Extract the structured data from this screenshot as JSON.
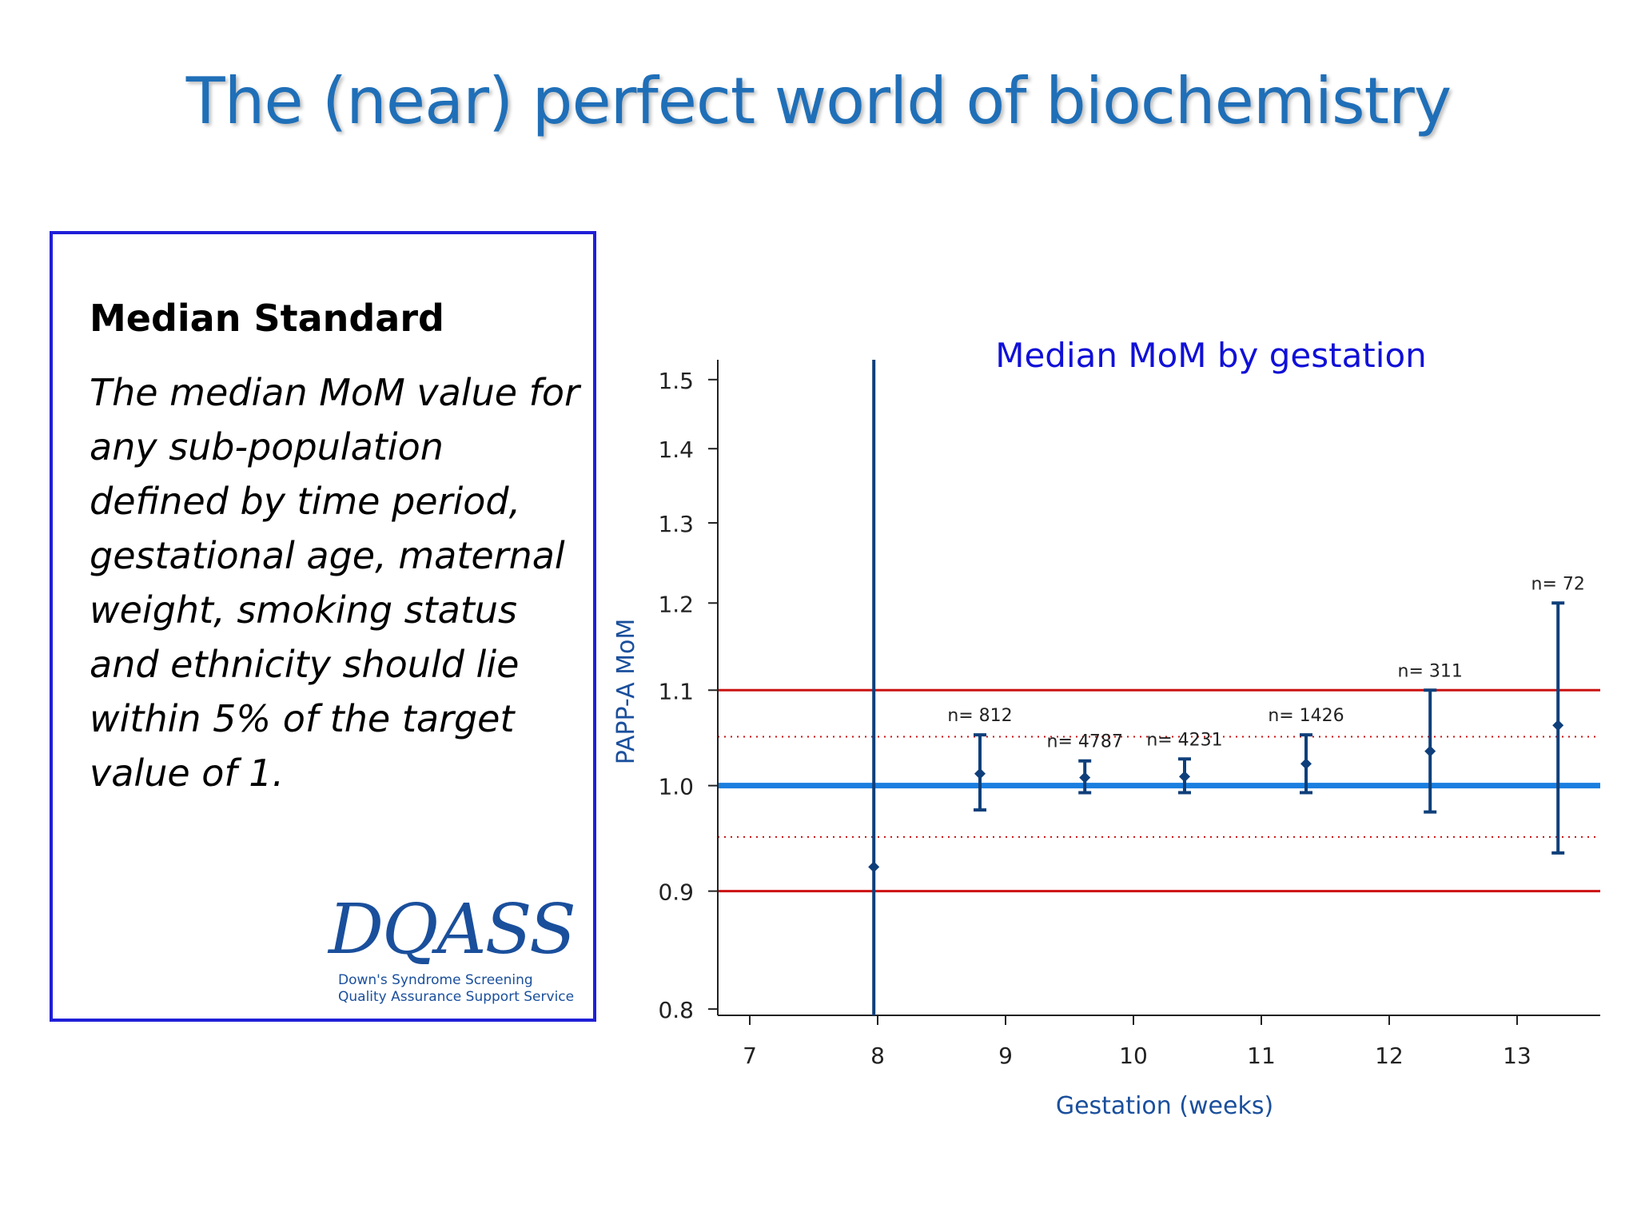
{
  "slide": {
    "title": "The (near) perfect world of biochemistry"
  },
  "info_box": {
    "heading": "Median Standard",
    "body": "The median MoM value for any sub-population defined by time period, gestational age, maternal weight, smoking status and ethnicity should lie within 5% of the target value of 1.",
    "border_color": "#1f1fd8"
  },
  "logo": {
    "word": "DQASS",
    "line1": "Down's Syndrome Screening",
    "line2": "Quality Assurance Support Service"
  },
  "chart_data": {
    "type": "scatter",
    "title": "Median MoM by gestation",
    "xlabel": "Gestation (weeks)",
    "ylabel": "PAPP-A MoM",
    "x_ticks": [
      "7",
      "8",
      "9",
      "10",
      "11",
      "12",
      "13"
    ],
    "y_ticks": [
      "0.8",
      "0.9",
      "1.0",
      "1.1",
      "1.2",
      "1.3",
      "1.4",
      "1.5"
    ],
    "y_scale": "log",
    "xlim": [
      6.75,
      13.65
    ],
    "ylim": [
      0.795,
      1.53
    ],
    "grid": false,
    "reference_lines": [
      {
        "y": 1.0,
        "style": "solid",
        "color": "#1a7fe0"
      },
      {
        "y": 1.1,
        "style": "solid",
        "color": "#cc1111"
      },
      {
        "y": 0.9,
        "style": "solid",
        "color": "#cc1111"
      },
      {
        "y": 1.05,
        "style": "dotted",
        "color": "#cc1111"
      },
      {
        "y": 0.95,
        "style": "dotted",
        "color": "#cc1111"
      }
    ],
    "series": [
      {
        "color": "#0f3f7a",
        "points": [
          {
            "x": 7.97,
            "y": 0.922,
            "low": 0.795,
            "high": 1.53,
            "label": ""
          },
          {
            "x": 8.8,
            "y": 1.012,
            "low": 0.976,
            "high": 1.052,
            "label": "n= 812"
          },
          {
            "x": 9.62,
            "y": 1.008,
            "low": 0.993,
            "high": 1.025,
            "label": "n= 4787"
          },
          {
            "x": 10.4,
            "y": 1.009,
            "low": 0.993,
            "high": 1.027,
            "label": "n= 4231"
          },
          {
            "x": 11.35,
            "y": 1.022,
            "low": 0.993,
            "high": 1.052,
            "label": "n= 1426"
          },
          {
            "x": 12.32,
            "y": 1.035,
            "low": 0.974,
            "high": 1.1,
            "label": "n= 311"
          },
          {
            "x": 13.32,
            "y": 1.062,
            "low": 0.935,
            "high": 1.2,
            "label": "n= 72"
          }
        ]
      }
    ]
  }
}
